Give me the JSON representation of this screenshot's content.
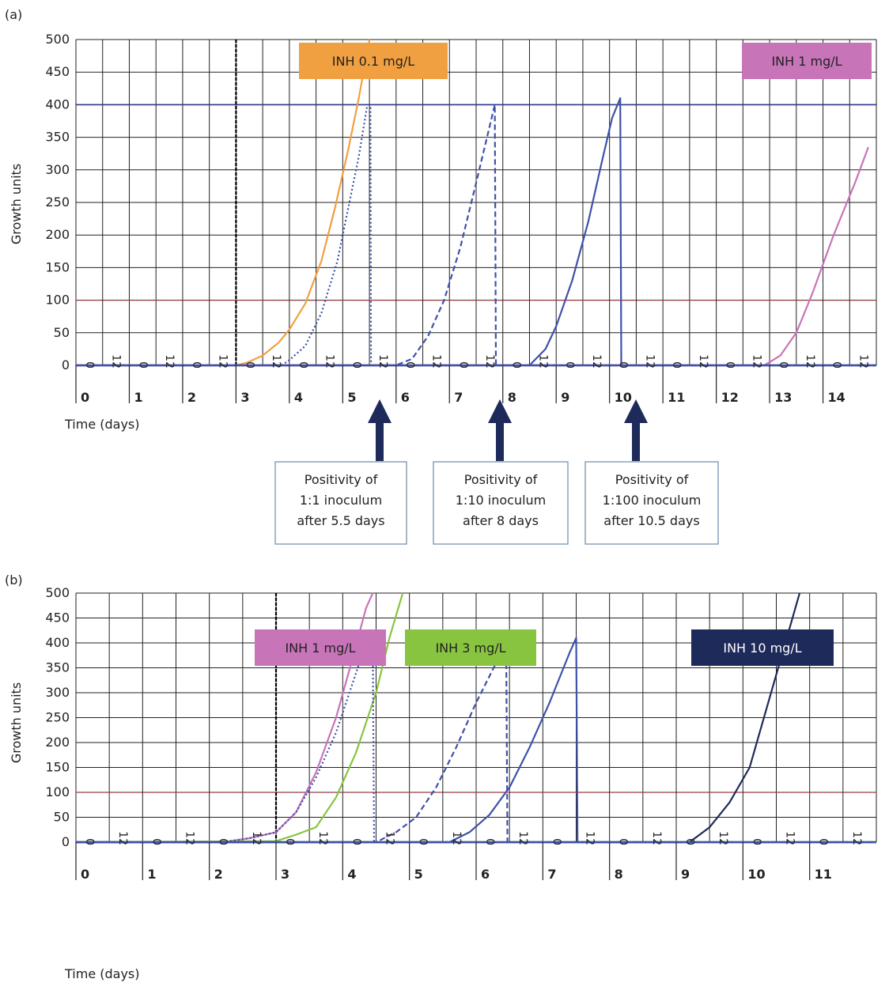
{
  "panels": [
    {
      "panel_label": "(a)",
      "ylabel": "Growth units",
      "xlabel": "Time (days)",
      "y_ticks": [
        "0",
        "50",
        "100",
        "150",
        "200",
        "250",
        "300",
        "350",
        "400",
        "450",
        "500"
      ],
      "x_half_day_ticks": [
        "0",
        "12",
        "0",
        "12",
        "0",
        "12",
        "0",
        "12",
        "0",
        "12",
        "0",
        "12",
        "0",
        "12",
        "0",
        "12",
        "0",
        "12",
        "0",
        "12",
        "0",
        "12",
        "0",
        "12",
        "0",
        "12",
        "0",
        "12",
        "0",
        "12"
      ],
      "day_labels": [
        "0",
        "1",
        "2",
        "3",
        "4",
        "5",
        "6",
        "7",
        "8",
        "9",
        "10",
        "11",
        "12",
        "13",
        "14"
      ],
      "legend": [
        {
          "text": "INH 0.1 mg/L",
          "bg": "#f0a040",
          "fg": "#222222"
        },
        {
          "text": "INH 1 mg/L",
          "bg": "#c874b8",
          "fg": "#222222"
        }
      ],
      "callouts": [
        {
          "lines": [
            "Positivity of",
            "1:1 inoculum",
            "after 5.5 days"
          ]
        },
        {
          "lines": [
            "Positivity of",
            "1:10 inoculum",
            "after 8 days"
          ]
        },
        {
          "lines": [
            "Positivity of",
            "1:100 inoculum",
            "after 10.5 days"
          ]
        }
      ]
    },
    {
      "panel_label": "(b)",
      "ylabel": "Growth units",
      "xlabel": "Time (days)",
      "y_ticks": [
        "0",
        "50",
        "100",
        "150",
        "200",
        "250",
        "300",
        "350",
        "400",
        "450",
        "500"
      ],
      "x_half_day_ticks": [
        "0",
        "12",
        "0",
        "12",
        "0",
        "12",
        "0",
        "12",
        "0",
        "12",
        "0",
        "12",
        "0",
        "12",
        "0",
        "12",
        "0",
        "12",
        "0",
        "12",
        "0",
        "12",
        "0",
        "12"
      ],
      "day_labels": [
        "0",
        "1",
        "2",
        "3",
        "4",
        "5",
        "6",
        "7",
        "8",
        "9",
        "10",
        "11"
      ],
      "legend": [
        {
          "text": "INH 1 mg/L",
          "bg": "#c874b8",
          "fg": "#222222"
        },
        {
          "text": "INH 3 mg/L",
          "bg": "#88c440",
          "fg": "#222222"
        },
        {
          "text": "INH 10 mg/L",
          "bg": "#1e2a5a",
          "fg": "#ffffff"
        }
      ]
    }
  ],
  "chart_data": [
    {
      "type": "line",
      "panel": "(a)",
      "xlabel": "Time (days)",
      "ylabel": "Growth units",
      "ylim": [
        0,
        500
      ],
      "xlim": [
        0,
        15
      ],
      "threshold_lines": [
        100,
        400
      ],
      "vertical_marker_day": 3,
      "grid": true,
      "series": [
        {
          "name": "INH 0.1 mg/L",
          "color": "#f0a040",
          "style": "solid",
          "x": [
            3.0,
            3.2,
            3.5,
            3.8,
            4.0,
            4.3,
            4.6,
            4.85,
            5.1,
            5.3,
            5.5
          ],
          "y": [
            0,
            4,
            15,
            35,
            55,
            95,
            160,
            240,
            330,
            410,
            500
          ]
        },
        {
          "color": "#3f51a8",
          "style": "dotted",
          "x": [
            0,
            3.85,
            4.0,
            4.3,
            4.6,
            4.9,
            5.1,
            5.3,
            5.45,
            5.52,
            5.53,
            15
          ],
          "y": [
            0,
            0,
            8,
            30,
            80,
            160,
            240,
            320,
            395,
            395,
            0,
            0
          ]
        },
        {
          "color": "#3f51a8",
          "style": "dashed",
          "x": [
            0,
            6.0,
            6.3,
            6.6,
            6.9,
            7.2,
            7.5,
            7.85,
            7.87,
            15
          ],
          "y": [
            0,
            0,
            10,
            45,
            100,
            180,
            280,
            400,
            0,
            0
          ]
        },
        {
          "color": "#3f51a8",
          "style": "solid",
          "x": [
            0,
            8.5,
            8.8,
            9.0,
            9.3,
            9.6,
            9.85,
            10.05,
            10.2,
            10.22,
            15
          ],
          "y": [
            0,
            0,
            25,
            60,
            130,
            220,
            310,
            380,
            410,
            0,
            0
          ]
        },
        {
          "name": "INH 1 mg/L",
          "color": "#c874b8",
          "style": "solid",
          "x": [
            0,
            12.9,
            13.1,
            13.2,
            13.5,
            13.8,
            14.2,
            14.6,
            14.85
          ],
          "y": [
            0,
            0,
            10,
            15,
            50,
            110,
            200,
            280,
            335
          ]
        }
      ]
    },
    {
      "type": "line",
      "panel": "(b)",
      "xlabel": "Time (days)",
      "ylabel": "Growth units",
      "ylim": [
        0,
        500
      ],
      "xlim": [
        0,
        12
      ],
      "threshold_lines": [
        100
      ],
      "vertical_marker_day": 3,
      "grid": true,
      "series": [
        {
          "name": "INH 1 mg/L",
          "color": "#c874b8",
          "style": "solid",
          "x": [
            0,
            2.2,
            2.6,
            3.0,
            3.3,
            3.6,
            3.9,
            4.15,
            4.35,
            4.45
          ],
          "y": [
            0,
            0,
            8,
            20,
            60,
            140,
            250,
            370,
            470,
            500
          ]
        },
        {
          "name": "INH 3 mg/L",
          "color": "#88c440",
          "style": "solid",
          "x": [
            0,
            3.0,
            3.3,
            3.6,
            3.9,
            4.2,
            4.5,
            4.7,
            4.9
          ],
          "y": [
            0,
            2,
            15,
            30,
            90,
            180,
            300,
            410,
            500
          ]
        },
        {
          "color": "#3f51a8",
          "style": "dotted",
          "x": [
            0,
            2.2,
            2.6,
            3.0,
            3.3,
            3.6,
            3.9,
            4.15,
            4.35,
            4.45,
            4.47,
            12
          ],
          "y": [
            0,
            0,
            8,
            20,
            60,
            130,
            220,
            320,
            400,
            400,
            0,
            0
          ]
        },
        {
          "color": "#3f51a8",
          "style": "dashed",
          "x": [
            0,
            4.5,
            4.8,
            5.1,
            5.4,
            5.7,
            6.0,
            6.3,
            6.45,
            6.47,
            12
          ],
          "y": [
            0,
            0,
            20,
            50,
            110,
            190,
            280,
            360,
            410,
            0,
            0
          ]
        },
        {
          "color": "#3f51a8",
          "style": "solid",
          "x": [
            0,
            5.6,
            5.9,
            6.2,
            6.5,
            6.8,
            7.1,
            7.4,
            7.5,
            7.52,
            12
          ],
          "y": [
            0,
            0,
            20,
            55,
            110,
            190,
            280,
            380,
            410,
            0,
            0
          ]
        },
        {
          "name": "INH 10 mg/L",
          "color": "#1e2a5a",
          "style": "solid",
          "x": [
            0,
            9.2,
            9.5,
            9.8,
            10.1,
            10.4,
            10.7,
            10.85
          ],
          "y": [
            0,
            0,
            30,
            80,
            150,
            290,
            430,
            500
          ]
        }
      ]
    }
  ]
}
